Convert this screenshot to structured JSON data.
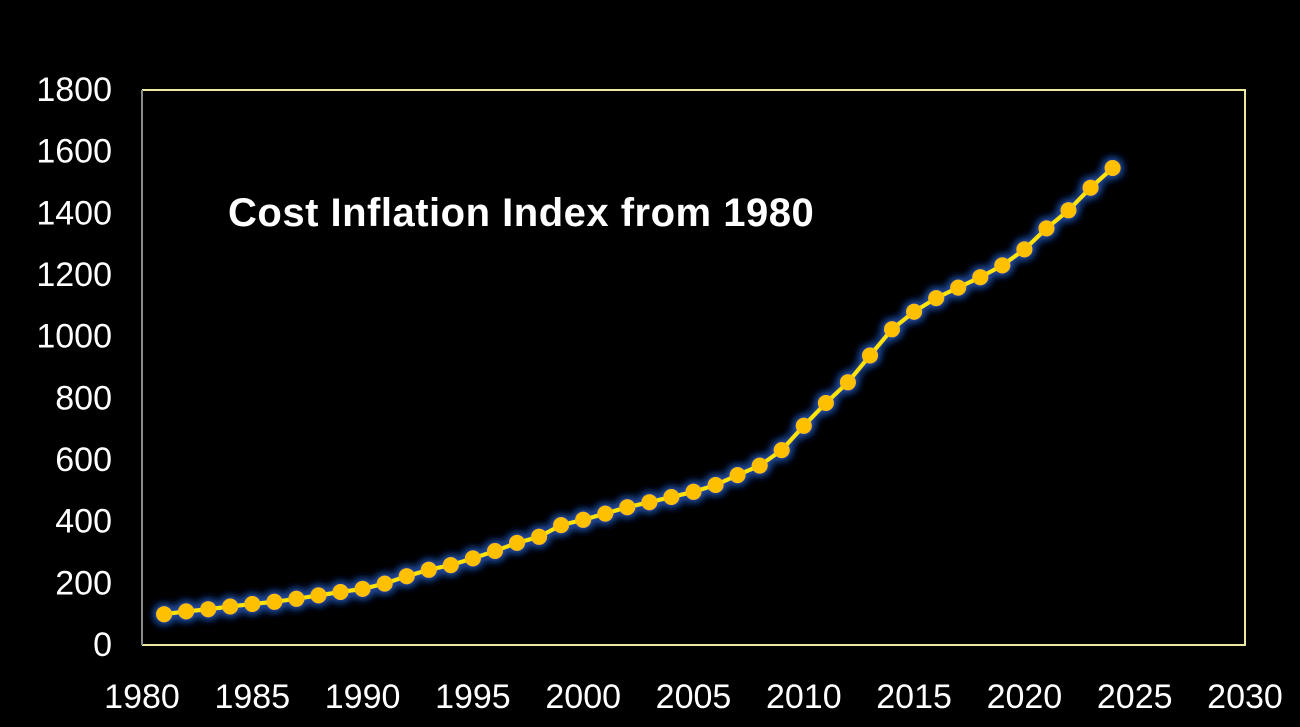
{
  "chart_data": {
    "type": "line",
    "title": "Cost Inflation Index from 1980",
    "series": [
      {
        "name": "Cost Inflation Index",
        "x": [
          1981,
          1982,
          1983,
          1984,
          1985,
          1986,
          1987,
          1988,
          1989,
          1990,
          1991,
          1992,
          1993,
          1994,
          1995,
          1996,
          1997,
          1998,
          1999,
          2000,
          2001,
          2002,
          2003,
          2004,
          2005,
          2006,
          2007,
          2008,
          2009,
          2010,
          2011,
          2012,
          2013,
          2014,
          2015,
          2016,
          2017,
          2018,
          2019,
          2020,
          2021,
          2022,
          2023,
          2024
        ],
        "values": [
          100,
          109,
          116,
          125,
          133,
          140,
          150,
          161,
          172,
          182,
          199,
          223,
          244,
          259,
          281,
          305,
          331,
          351,
          389,
          406,
          426,
          447,
          463,
          480,
          497,
          519,
          551,
          582,
          632,
          711,
          785,
          852,
          939,
          1024,
          1081,
          1125,
          1159,
          1193,
          1231,
          1283,
          1351,
          1410,
          1483,
          1547
        ]
      }
    ],
    "xlabel": "",
    "ylabel": "",
    "xlim": [
      1980,
      2030
    ],
    "ylim": [
      0,
      1800
    ],
    "x_ticks": [
      1980,
      1985,
      1990,
      1995,
      2000,
      2005,
      2010,
      2015,
      2020,
      2025,
      2030
    ],
    "y_ticks": [
      0,
      200,
      400,
      600,
      800,
      1000,
      1200,
      1400,
      1600,
      1800
    ],
    "grid": false,
    "legend": false,
    "colors": {
      "background": "#000000",
      "line": "#FFE500",
      "marker": "#FFC000",
      "glow": "#2A55B0",
      "plot_border": "#EDE8A2",
      "axis_line": "#8C8C8C",
      "text": "#FFFFFF"
    }
  }
}
